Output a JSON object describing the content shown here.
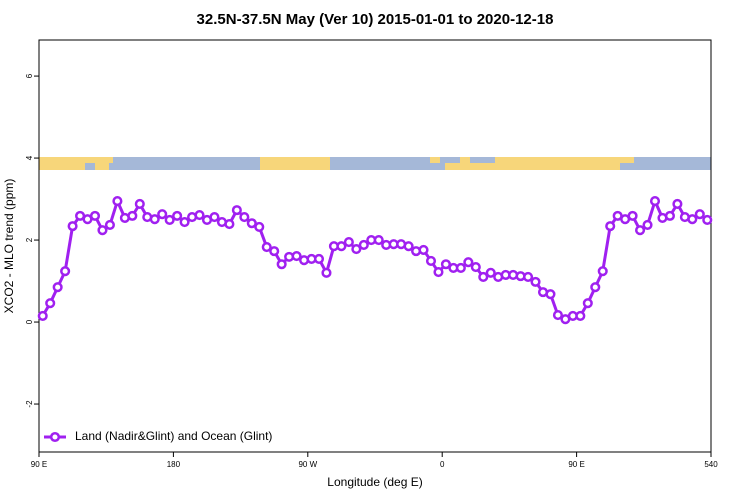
{
  "chart_data": {
    "type": "line",
    "title": "32.5N-37.5N May (Ver 10)   2015-01-01 to 2020-12-18",
    "x_label": "Longitude (deg E)",
    "y_label": "XCO2 - MLO trend (ppm)",
    "x": [
      92.5,
      97.5,
      102.5,
      107.5,
      112.5,
      117.5,
      122.5,
      127.5,
      132.5,
      137.5,
      142.5,
      147.5,
      152.5,
      157.5,
      162.5,
      167.5,
      172.5,
      177.5,
      182.5,
      187.5,
      192.5,
      197.5,
      202.5,
      207.5,
      212.5,
      217.5,
      222.5,
      227.5,
      232.5,
      237.5,
      242.5,
      247.5,
      252.5,
      257.5,
      262.5,
      267.5,
      272.5,
      277.5,
      282.5,
      287.5,
      292.5,
      297.5,
      302.5,
      307.5,
      312.5,
      317.5,
      322.5,
      327.5,
      332.5,
      337.5,
      342.5,
      347.5,
      352.5,
      357.5,
      362.5,
      367.5,
      372.5,
      377.5,
      382.5,
      387.5,
      392.5,
      397.5,
      402.5,
      407.5,
      412.5,
      417.5,
      422.5,
      427.5,
      432.5,
      437.5,
      442.5,
      447.5,
      452.5,
      457.5,
      462.5,
      467.5,
      472.5,
      477.5,
      482.5,
      487.5,
      492.5,
      497.5,
      502.5,
      507.5,
      512.5,
      517.5,
      522.5,
      527.5,
      532.5,
      537.5
    ],
    "series": [
      {
        "name": "Land (Nadir&Glint) and Ocean (Glint)",
        "color": "#a020f0",
        "values": [
          0.15,
          0.46,
          0.85,
          1.24,
          2.34,
          2.59,
          2.51,
          2.59,
          2.24,
          2.37,
          2.95,
          2.54,
          2.59,
          2.88,
          2.56,
          2.51,
          2.63,
          2.49,
          2.59,
          2.44,
          2.56,
          2.61,
          2.49,
          2.56,
          2.44,
          2.39,
          2.73,
          2.56,
          2.41,
          2.32,
          1.83,
          1.73,
          1.41,
          1.59,
          1.61,
          1.51,
          1.54,
          1.54,
          1.2,
          1.85,
          1.85,
          1.95,
          1.78,
          1.88,
          2.0,
          2.0,
          1.88,
          1.9,
          1.9,
          1.85,
          1.73,
          1.76,
          1.49,
          1.22,
          1.41,
          1.32,
          1.32,
          1.46,
          1.34,
          1.1,
          1.2,
          1.1,
          1.15,
          1.15,
          1.12,
          1.1,
          0.98,
          0.73,
          0.68,
          0.17,
          0.07,
          0.15,
          0.15,
          0.46,
          0.85,
          1.24,
          2.34,
          2.59,
          2.51,
          2.59,
          2.24,
          2.37,
          2.95,
          2.54,
          2.59,
          2.88,
          2.56,
          2.51,
          2.63,
          2.49
        ]
      }
    ],
    "xlim": [
      90,
      540
    ],
    "xticks": [
      {
        "value": 90,
        "label": "90 E"
      },
      180,
      {
        "value": 270,
        "label": "90 W"
      },
      {
        "value": 360,
        "label": "0"
      },
      {
        "value": 450,
        "label": "90 E"
      },
      540
    ],
    "ylim": [
      -3.17,
      6.88
    ],
    "yticks": [
      -2,
      0,
      2,
      4,
      6
    ],
    "legend": "bottom-left"
  }
}
